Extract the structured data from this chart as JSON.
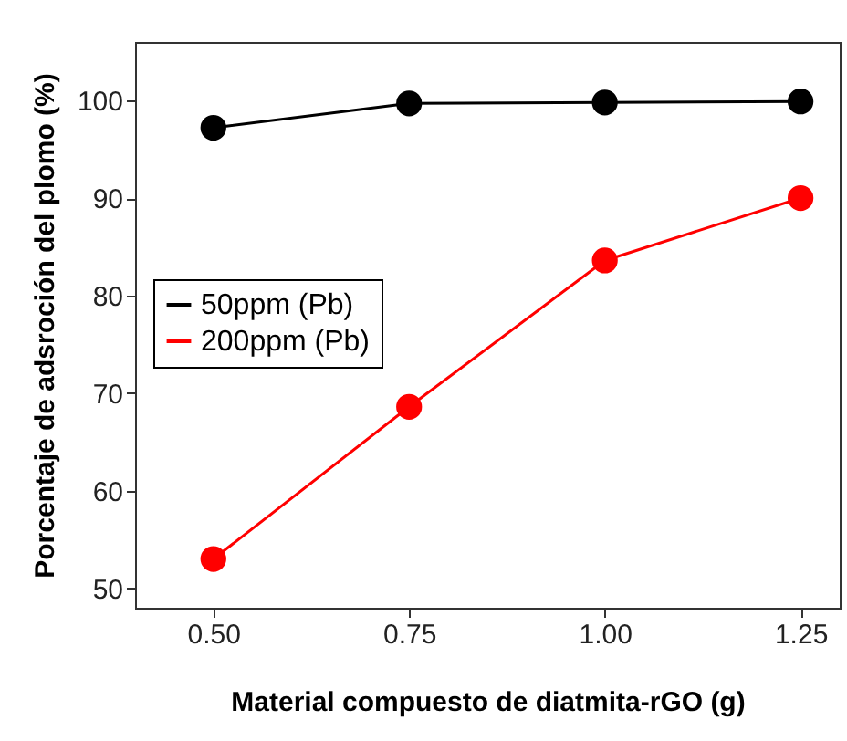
{
  "chart_data": {
    "type": "line",
    "xlabel": "Material compuesto de diatmita-rGO (g)",
    "ylabel": "Porcentaje de adsroción del plomo (%)",
    "x": [
      0.5,
      0.75,
      1.0,
      1.25
    ],
    "series": [
      {
        "name": "50ppm (Pb)",
        "color": "#000000",
        "values": [
          97.2,
          99.7,
          99.8,
          99.9
        ]
      },
      {
        "name": "200ppm (Pb)",
        "color": "#ff0000",
        "values": [
          53.0,
          68.6,
          83.6,
          90.0
        ]
      }
    ],
    "xlim": [
      0.4,
      1.3
    ],
    "xticks": [
      {
        "value": 0.5,
        "label": "0.50"
      },
      {
        "value": 0.75,
        "label": "0.75"
      },
      {
        "value": 1.0,
        "label": "1.00"
      },
      {
        "value": 1.25,
        "label": "1.25"
      }
    ],
    "ylim": [
      48,
      106
    ],
    "yticks": [
      50,
      60,
      70,
      80,
      90,
      100
    ],
    "grid": false,
    "legend": "left",
    "marker": "circle",
    "line_style": "solid"
  }
}
